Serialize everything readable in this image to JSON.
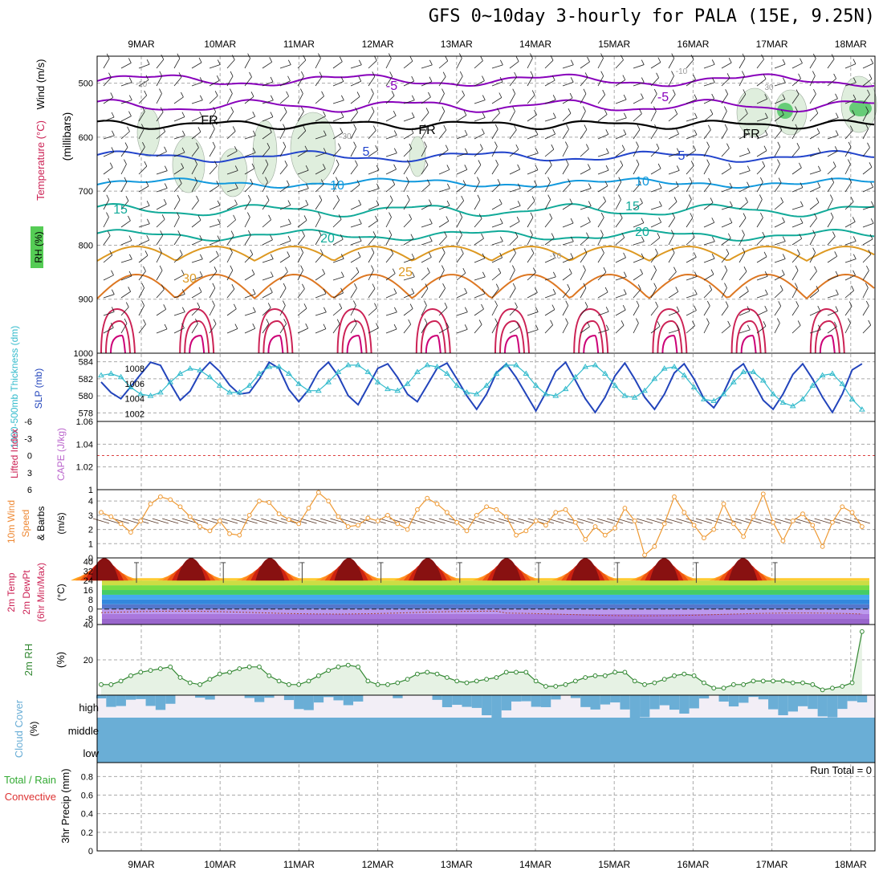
{
  "title": "GFS 0~10day 3-hourly for PALA (15E, 9.25N)",
  "dates": [
    "9MAR",
    "10MAR",
    "11MAR",
    "12MAR",
    "13MAR",
    "14MAR",
    "15MAR",
    "16MAR",
    "17MAR",
    "18MAR"
  ],
  "colors": {
    "grid": "#aaaaaa",
    "purple": "#8800bb",
    "blue": "#2244cc",
    "cyan": "#1199dd",
    "teal": "#11aa99",
    "orange": "#dd9922",
    "darkorange": "#dd7722",
    "red": "#cc2255",
    "slp": "#2244bb",
    "thick": "#33bbcc",
    "wind": "#ee9933",
    "rh2m": "#338833",
    "cloud": "#6aaed6",
    "cloud_bg": "#f2eef6"
  },
  "panels": {
    "upper": {
      "ylabel": "(millibars)",
      "label_wind": "Wind (m/s)",
      "label_temp": "Temperature (°C)",
      "label_rh": "RH (%)",
      "yticks": [
        "500",
        "600",
        "700",
        "800",
        "900",
        "1000"
      ],
      "contour_labels": [
        "-5",
        "-5",
        "FR",
        "FR",
        "FR",
        "5",
        "5",
        "10",
        "10",
        "15",
        "15",
        "20",
        "20",
        "25",
        "30",
        "-10",
        "-10",
        "-10",
        "30",
        "30"
      ]
    },
    "slp": {
      "label_thick": "1000-500mb Thickness (dm)",
      "label_slp": "SLP (mb)",
      "yticks_left": [
        "584",
        "582",
        "580",
        "578"
      ],
      "yticks_right": [
        "1008",
        "1006",
        "1004",
        "1002"
      ]
    },
    "cape": {
      "label_li": "Lifted Index",
      "label_cape": "CAPE (J/kg)",
      "yticks_left": [
        "-6",
        "-3",
        "0",
        "3",
        "6"
      ],
      "yticks_right": [
        "1.06",
        "1.04",
        "1.02",
        "1"
      ]
    },
    "wind10": {
      "label_a": "10m Wind",
      "label_b": "Speed",
      "label_c": "& Barbs",
      "label_d": "(m/s)",
      "yticks": [
        "4",
        "3",
        "2",
        "1",
        "0"
      ]
    },
    "temp2m": {
      "label_a": "2m Temp",
      "label_b": "2m DewPt",
      "label_c": "(6hr Min/Max)",
      "label_d": "(°C)",
      "yticks": [
        "40",
        "32",
        "24",
        "16",
        "8",
        "0",
        "-8"
      ]
    },
    "rh2m": {
      "label_a": "2m RH",
      "label_b": "(%)",
      "yticks": [
        "40",
        "20"
      ]
    },
    "cloud": {
      "label_a": "Cloud Cover",
      "label_b": "(%)",
      "levels": [
        "high",
        "middle",
        "low"
      ]
    },
    "precip": {
      "label_a": "3hr Precip (mm)",
      "label_b": "Total / Rain",
      "label_c": "Convective",
      "run_total": "Run Total = 0",
      "yticks": [
        "0.8",
        "0.6",
        "0.4",
        "0.2",
        "0"
      ]
    }
  },
  "chart_data": {
    "type": "line",
    "title": "GFS 0~10day 3-hourly for PALA (15E, 9.25N)",
    "x_axis": "forecast time (3-hourly)",
    "categories": [
      "9MAR",
      "10MAR",
      "11MAR",
      "12MAR",
      "13MAR",
      "14MAR",
      "15MAR",
      "16MAR",
      "17MAR",
      "18MAR"
    ],
    "slp_mb": [
      1006.2,
      1004.8,
      1004.0,
      1005.6,
      1007.2,
      1008.8,
      1008.4,
      1006.0,
      1003.8,
      1005.0,
      1007.4,
      1008.8,
      1007.6,
      1005.8,
      1004.6,
      1004.8,
      1006.6,
      1008.8,
      1008.0,
      1005.2,
      1003.6,
      1005.2,
      1007.6,
      1008.8,
      1007.0,
      1004.4,
      1003.2,
      1005.6,
      1008.0,
      1008.6,
      1006.8,
      1004.6,
      1003.6,
      1005.8,
      1008.0,
      1008.7,
      1006.6,
      1004.4,
      1002.6,
      1004.6,
      1007.4,
      1008.6,
      1006.8,
      1004.6,
      1002.4,
      1004.8,
      1007.6,
      1008.8,
      1006.4,
      1004.0,
      1002.2,
      1004.2,
      1007.0,
      1008.7,
      1006.6,
      1004.2,
      1002.6,
      1004.6,
      1007.4,
      1008.6,
      1006.6,
      1004.0,
      1002.8,
      1004.8,
      1007.6,
      1008.6,
      1006.2,
      1003.8,
      1002.6,
      1004.6,
      1007.2,
      1008.6,
      1006.6,
      1004.2,
      1002.2,
      1004.6,
      1007.8,
      1008.6
    ],
    "thickness_dm": [
      582.4,
      582.6,
      582.2,
      581.0,
      580.2,
      580.0,
      580.4,
      581.6,
      582.6,
      583.2,
      583.0,
      582.2,
      581.2,
      580.4,
      580.4,
      581.2,
      582.6,
      583.4,
      583.4,
      582.6,
      581.4,
      580.6,
      580.6,
      581.6,
      582.8,
      583.6,
      583.6,
      582.8,
      581.6,
      580.8,
      580.6,
      581.4,
      582.8,
      583.6,
      583.4,
      582.6,
      581.2,
      580.4,
      580.2,
      581.2,
      582.6,
      583.6,
      583.6,
      582.6,
      581.2,
      580.2,
      580.0,
      580.8,
      582.2,
      583.4,
      583.6,
      582.6,
      581.2,
      580.0,
      579.8,
      580.6,
      582.0,
      583.2,
      583.4,
      582.4,
      581.0,
      579.6,
      579.4,
      580.2,
      581.6,
      582.8,
      582.8,
      581.8,
      580.2,
      579.2,
      578.8,
      579.6,
      581.2,
      582.4,
      582.6,
      581.4,
      579.6,
      578.4
    ],
    "wind10m_speed": [
      3.2,
      2.9,
      2.4,
      1.8,
      2.6,
      3.8,
      4.3,
      4.1,
      3.6,
      2.9,
      2.2,
      1.9,
      2.6,
      1.7,
      1.6,
      3.0,
      4.0,
      3.9,
      3.1,
      2.7,
      2.4,
      3.5,
      4.6,
      4.0,
      2.9,
      2.2,
      2.3,
      2.8,
      2.6,
      3.0,
      2.4,
      2.0,
      3.4,
      4.2,
      3.8,
      3.2,
      2.5,
      1.9,
      3.0,
      3.6,
      3.4,
      2.9,
      1.6,
      1.9,
      2.6,
      2.3,
      3.2,
      3.4,
      2.5,
      1.3,
      2.2,
      1.6,
      2.1,
      3.5,
      2.6,
      0.2,
      0.8,
      2.4,
      4.3,
      3.2,
      2.3,
      1.4,
      2.0,
      3.8,
      2.4,
      1.5,
      2.9,
      4.5,
      2.5,
      1.2,
      2.6,
      3.1,
      2.3,
      0.8,
      2.5,
      3.6,
      3.2,
      2.2
    ],
    "temp2m_max": [
      35,
      35,
      35,
      35,
      35,
      35,
      35,
      35,
      35
    ],
    "temp2m_min": [
      22,
      22,
      22,
      22,
      22,
      22,
      22,
      22,
      22
    ],
    "rh2m_pct": [
      6,
      6,
      8,
      11,
      13,
      14,
      15,
      16,
      10,
      7,
      6,
      9,
      12,
      13,
      15,
      16,
      16,
      11,
      8,
      6,
      6,
      8,
      11,
      14,
      16,
      17,
      16,
      8,
      6,
      6,
      7,
      9,
      12,
      13,
      12,
      10,
      8,
      7,
      8,
      9,
      10,
      13,
      13,
      13,
      8,
      5,
      5,
      6,
      8,
      10,
      11,
      11,
      13,
      13,
      8,
      6,
      7,
      9,
      11,
      12,
      11,
      7,
      4,
      4,
      6,
      6,
      8,
      8,
      8,
      8,
      7,
      7,
      6,
      3,
      4,
      5,
      7,
      36
    ],
    "cloud_low_pct": [
      100,
      100,
      100,
      100,
      100,
      100,
      100,
      100,
      100,
      100
    ],
    "cloud_middle_pct": [
      100,
      100,
      100,
      100,
      100,
      100,
      100,
      100,
      100,
      100
    ],
    "precip_3hr_mm": [
      0,
      0,
      0,
      0,
      0,
      0,
      0,
      0,
      0,
      0
    ],
    "axes": {
      "upper_pressure_mb": [
        450,
        1000
      ],
      "slp_mb": [
        1001,
        1010
      ],
      "thickness_dm": [
        577,
        585
      ],
      "lifted_index": [
        -6,
        6
      ],
      "cape": [
        1,
        1.06
      ],
      "wind_speed": [
        0,
        4.8
      ],
      "temp_c": [
        -13,
        43
      ],
      "rh_pct": [
        0,
        40
      ],
      "precip_mm": [
        0,
        0.95
      ]
    }
  }
}
